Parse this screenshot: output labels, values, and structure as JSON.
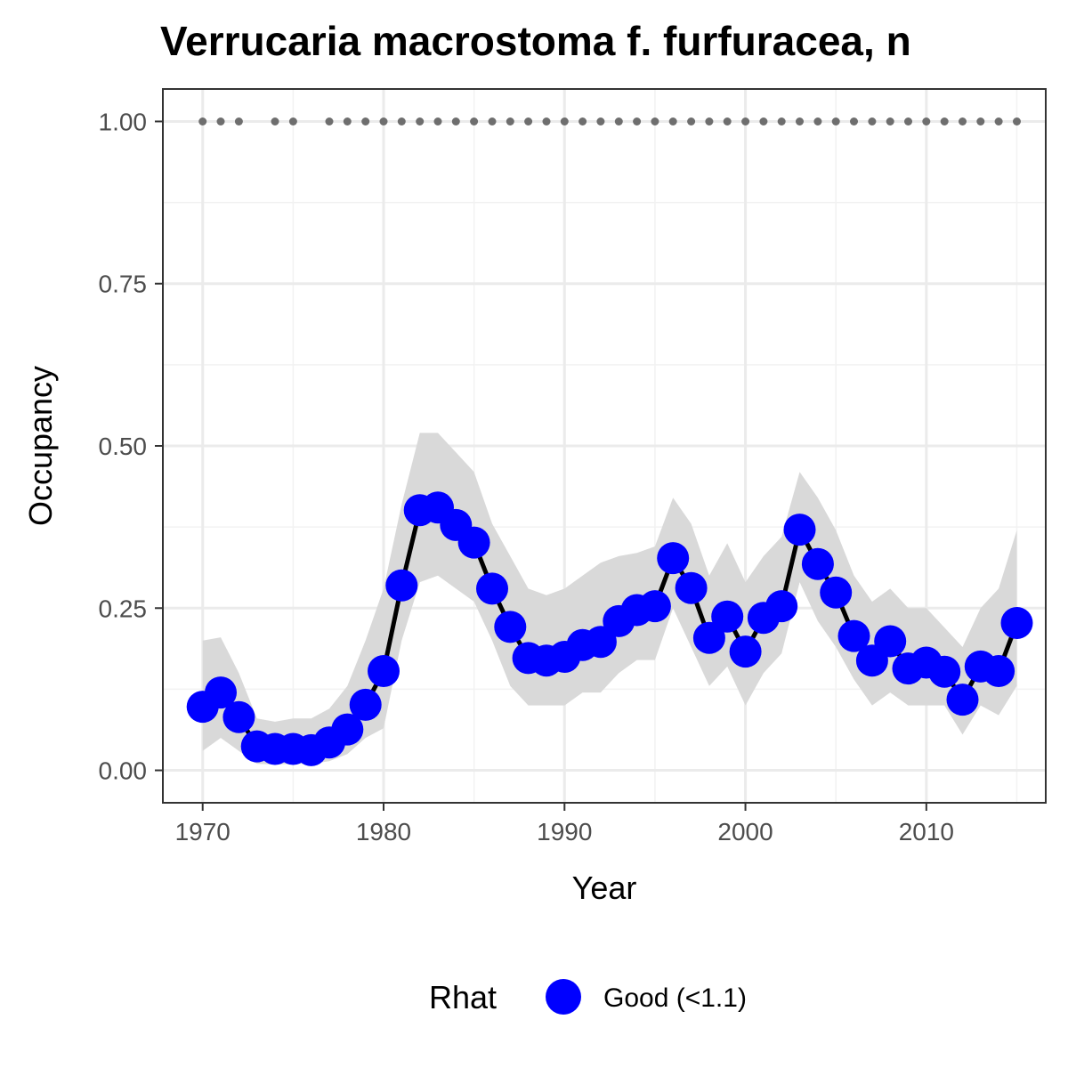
{
  "chart_data": {
    "type": "line",
    "title": "Verrucaria macrostoma f. furfuracea, n",
    "xlabel": "Year",
    "ylabel": "Occupancy",
    "xlim": [
      1967.8,
      2016.6
    ],
    "ylim": [
      -0.05,
      1.05
    ],
    "x_ticks": [
      1970,
      1980,
      1990,
      2000,
      2010
    ],
    "y_ticks": [
      0.0,
      0.25,
      0.5,
      0.75,
      1.0
    ],
    "y_tick_labels": [
      "0.00",
      "0.25",
      "0.50",
      "0.75",
      "1.00"
    ],
    "grid": true,
    "legend": {
      "title": "Rhat",
      "position": "bottom",
      "items": [
        {
          "label": "Good (<1.1)",
          "color": "#0000ff"
        }
      ]
    },
    "colors": {
      "points": "#0000ff",
      "line": "#000000",
      "ribbon": "#d9d9d9",
      "records": "#6e6e6e"
    },
    "series": [
      {
        "name": "Good (<1.1)",
        "x": [
          1970,
          1971,
          1972,
          1973,
          1974,
          1975,
          1976,
          1977,
          1978,
          1979,
          1980,
          1981,
          1982,
          1983,
          1984,
          1985,
          1986,
          1987,
          1988,
          1989,
          1990,
          1991,
          1992,
          1993,
          1994,
          1995,
          1996,
          1997,
          1998,
          1999,
          2000,
          2001,
          2002,
          2003,
          2004,
          2005,
          2006,
          2007,
          2008,
          2009,
          2010,
          2011,
          2012,
          2013,
          2014,
          2015
        ],
        "y": [
          0.098,
          0.12,
          0.082,
          0.037,
          0.033,
          0.033,
          0.031,
          0.043,
          0.063,
          0.101,
          0.153,
          0.285,
          0.401,
          0.405,
          0.378,
          0.351,
          0.28,
          0.221,
          0.173,
          0.169,
          0.175,
          0.193,
          0.198,
          0.23,
          0.247,
          0.253,
          0.327,
          0.281,
          0.204,
          0.237,
          0.183,
          0.235,
          0.253,
          0.371,
          0.318,
          0.274,
          0.207,
          0.169,
          0.199,
          0.157,
          0.166,
          0.152,
          0.109,
          0.16,
          0.153,
          0.227
        ],
        "lower": [
          0.03,
          0.05,
          0.03,
          0.01,
          0.009,
          0.01,
          0.01,
          0.014,
          0.025,
          0.05,
          0.065,
          0.2,
          0.29,
          0.3,
          0.28,
          0.26,
          0.2,
          0.13,
          0.1,
          0.1,
          0.1,
          0.12,
          0.12,
          0.15,
          0.17,
          0.17,
          0.25,
          0.19,
          0.13,
          0.16,
          0.1,
          0.15,
          0.18,
          0.29,
          0.23,
          0.19,
          0.14,
          0.1,
          0.12,
          0.1,
          0.1,
          0.1,
          0.055,
          0.1,
          0.085,
          0.13
        ],
        "upper": [
          0.2,
          0.205,
          0.15,
          0.08,
          0.075,
          0.08,
          0.08,
          0.095,
          0.13,
          0.2,
          0.28,
          0.41,
          0.52,
          0.52,
          0.49,
          0.46,
          0.38,
          0.33,
          0.28,
          0.27,
          0.28,
          0.3,
          0.32,
          0.33,
          0.335,
          0.345,
          0.42,
          0.38,
          0.3,
          0.35,
          0.29,
          0.33,
          0.36,
          0.46,
          0.42,
          0.37,
          0.3,
          0.26,
          0.28,
          0.25,
          0.25,
          0.22,
          0.19,
          0.25,
          0.28,
          0.37
        ]
      }
    ],
    "record_years": [
      1970,
      1971,
      1972,
      1974,
      1975,
      1977,
      1978,
      1979,
      1980,
      1981,
      1982,
      1983,
      1984,
      1985,
      1986,
      1987,
      1988,
      1989,
      1990,
      1991,
      1992,
      1993,
      1994,
      1995,
      1996,
      1997,
      1998,
      1999,
      2000,
      2001,
      2002,
      2003,
      2004,
      2005,
      2006,
      2007,
      2008,
      2009,
      2010,
      2011,
      2012,
      2013,
      2014,
      2015
    ],
    "record_value": 1.0
  }
}
